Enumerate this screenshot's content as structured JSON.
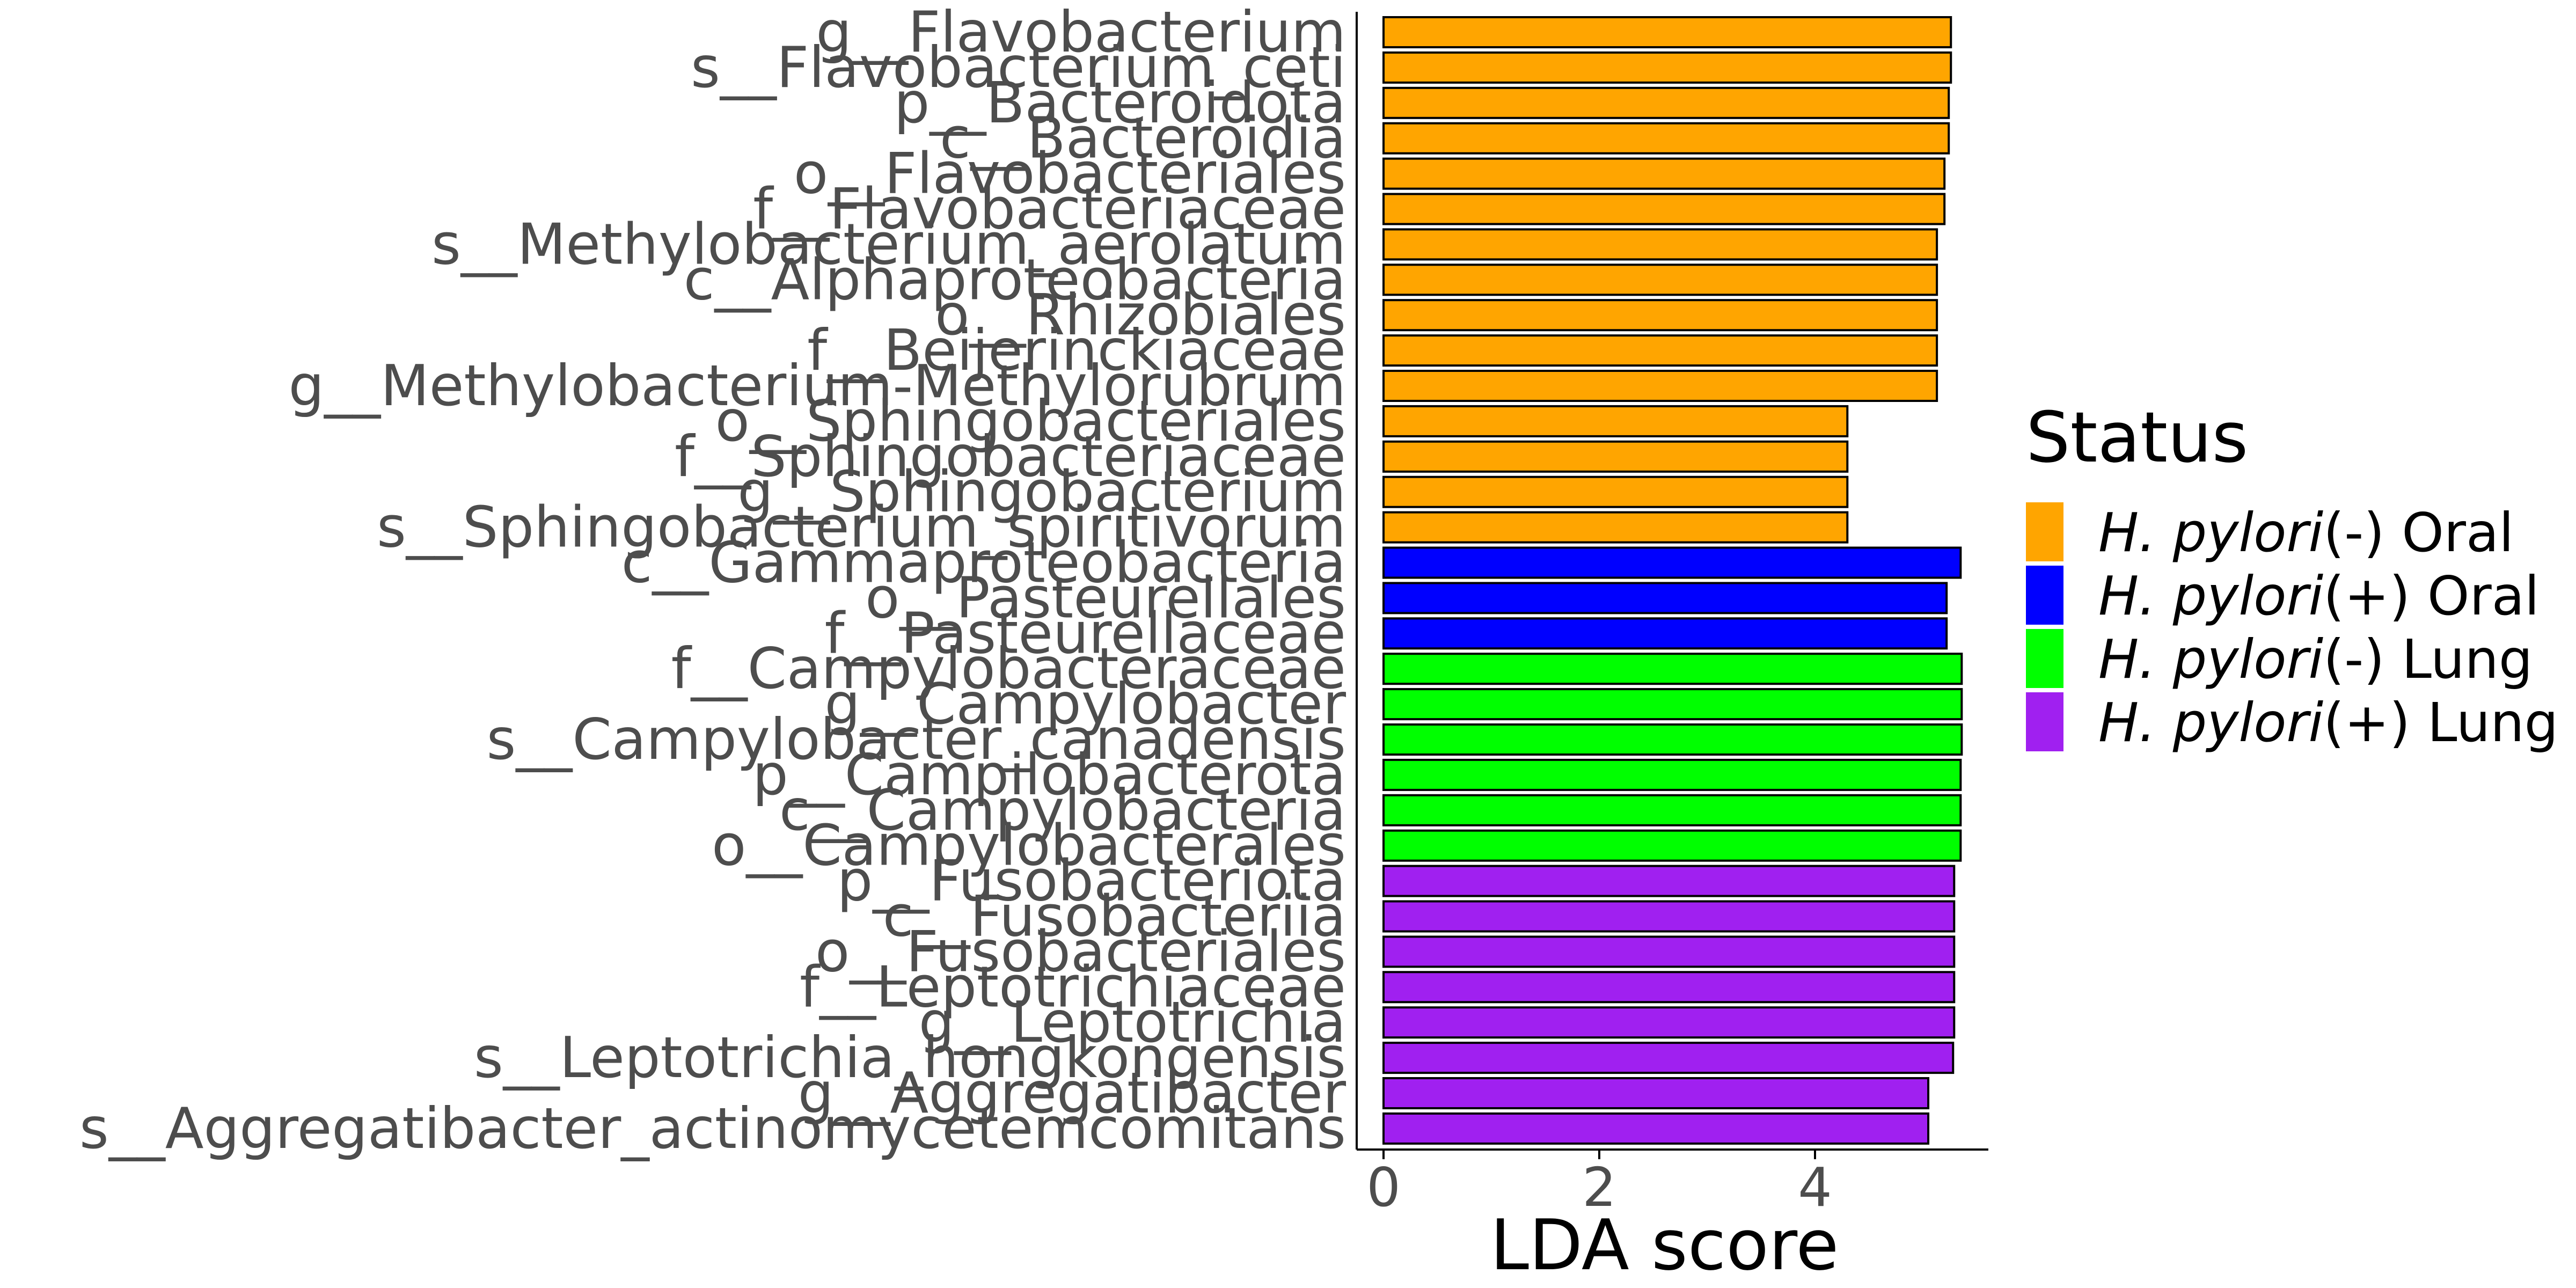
{
  "chart_data": {
    "type": "bar",
    "orientation": "horizontal",
    "xlabel": "LDA score",
    "xlim": [
      0,
      5.5
    ],
    "xticks": [
      0,
      2,
      4
    ],
    "grid": false,
    "legend_position": "right",
    "legend": {
      "title": "Status",
      "entries": [
        {
          "italic": "H. pylori",
          "suffix": "(-) Oral",
          "color": "#FFA500"
        },
        {
          "italic": "H. pylori",
          "suffix": "(+) Oral",
          "color": "#0000FF"
        },
        {
          "italic": "H. pylori",
          "suffix": "(-) Lung",
          "color": "#00FF00"
        },
        {
          "italic": "H. pylori",
          "suffix": "(+) Lung",
          "color": "#A020F0"
        }
      ]
    },
    "bars": [
      {
        "label": "g__Flavobacterium",
        "value": 5.26,
        "group": 0
      },
      {
        "label": "s__Flavobacterium_ceti",
        "value": 5.26,
        "group": 0
      },
      {
        "label": "p__Bacteroidota",
        "value": 5.24,
        "group": 0
      },
      {
        "label": "c__Bacteroidia",
        "value": 5.24,
        "group": 0
      },
      {
        "label": "o__Flavobacteriales",
        "value": 5.2,
        "group": 0
      },
      {
        "label": "f__Flavobacteriaceae",
        "value": 5.2,
        "group": 0
      },
      {
        "label": "s__Methylobacterium_aerolatum",
        "value": 5.13,
        "group": 0
      },
      {
        "label": "c__Alphaproteobacteria",
        "value": 5.13,
        "group": 0
      },
      {
        "label": "o__Rhizobiales",
        "value": 5.13,
        "group": 0
      },
      {
        "label": "f__Beijerinckiaceae",
        "value": 5.13,
        "group": 0
      },
      {
        "label": "g__Methylobacterium-Methylorubrum",
        "value": 5.13,
        "group": 0
      },
      {
        "label": "o__Sphingobacteriales",
        "value": 4.3,
        "group": 0
      },
      {
        "label": "f__Sphingobacteriaceae",
        "value": 4.3,
        "group": 0
      },
      {
        "label": "g__Sphingobacterium",
        "value": 4.3,
        "group": 0
      },
      {
        "label": "s__Sphingobacterium_spiritivorum",
        "value": 4.3,
        "group": 0
      },
      {
        "label": "c__Gammaproteobacteria",
        "value": 5.35,
        "group": 1
      },
      {
        "label": "o__Pasteurellales",
        "value": 5.22,
        "group": 1
      },
      {
        "label": "f__Pasteurellaceae",
        "value": 5.22,
        "group": 1
      },
      {
        "label": "f__Campylobacteraceae",
        "value": 5.36,
        "group": 2
      },
      {
        "label": "g__Campylobacter",
        "value": 5.36,
        "group": 2
      },
      {
        "label": "s__Campylobacter_canadensis",
        "value": 5.36,
        "group": 2
      },
      {
        "label": "p__Campilobacterota",
        "value": 5.35,
        "group": 2
      },
      {
        "label": "c__Campylobacteria",
        "value": 5.35,
        "group": 2
      },
      {
        "label": "o__Campylobacterales",
        "value": 5.35,
        "group": 2
      },
      {
        "label": "p__Fusobacteriota",
        "value": 5.29,
        "group": 3
      },
      {
        "label": "c__Fusobacteriia",
        "value": 5.29,
        "group": 3
      },
      {
        "label": "o__Fusobacteriales",
        "value": 5.29,
        "group": 3
      },
      {
        "label": "f__Leptotrichiaceae",
        "value": 5.29,
        "group": 3
      },
      {
        "label": "g__Leptotrichia",
        "value": 5.29,
        "group": 3
      },
      {
        "label": "s__Leptotrichia_hongkongensis",
        "value": 5.28,
        "group": 3
      },
      {
        "label": "g__Aggregatibacter",
        "value": 5.05,
        "group": 3
      },
      {
        "label": "s__Aggregatibacter_actinomycetemcomitans",
        "value": 5.05,
        "group": 3
      }
    ]
  }
}
